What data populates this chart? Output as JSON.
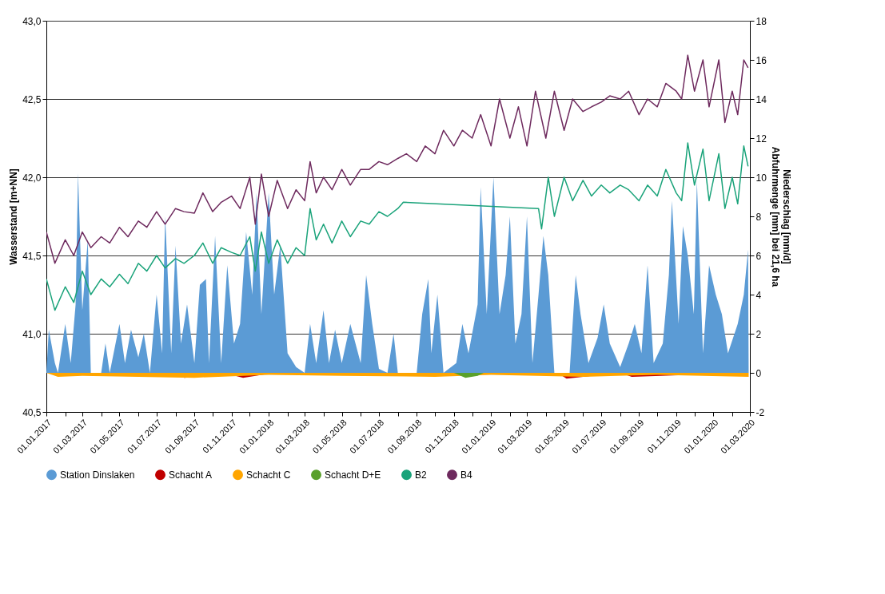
{
  "chart_data": {
    "type": "line",
    "ylabel": "Wasserstand  [m+NN]",
    "y2label": "Niederschlag [mm/d]\nAbfuhrmenge [mm] bei 21,6 ha",
    "xlim": [
      "2017-01-01",
      "2020-03-01"
    ],
    "xticks": [
      {
        "value": "2017-01-01",
        "label": "01.01.2017"
      },
      {
        "value": "2017-02-01",
        "label": null
      },
      {
        "value": "2017-03-01",
        "label": "01.03.2017"
      },
      {
        "value": "2017-04-01",
        "label": null
      },
      {
        "value": "2017-05-01",
        "label": "01.05.2017"
      },
      {
        "value": "2017-06-01",
        "label": null
      },
      {
        "value": "2017-07-01",
        "label": "01.07.2017"
      },
      {
        "value": "2017-08-01",
        "label": null
      },
      {
        "value": "2017-09-01",
        "label": "01.09.2017"
      },
      {
        "value": "2017-10-01",
        "label": null
      },
      {
        "value": "2017-11-01",
        "label": "01.11.2017"
      },
      {
        "value": "2017-12-01",
        "label": null
      },
      {
        "value": "2018-01-01",
        "label": "01.01.2018"
      },
      {
        "value": "2018-02-01",
        "label": null
      },
      {
        "value": "2018-03-01",
        "label": "01.03.2018"
      },
      {
        "value": "2018-04-01",
        "label": null
      },
      {
        "value": "2018-05-01",
        "label": "01.05.2018"
      },
      {
        "value": "2018-06-01",
        "label": null
      },
      {
        "value": "2018-07-01",
        "label": "01.07.2018"
      },
      {
        "value": "2018-08-01",
        "label": null
      },
      {
        "value": "2018-09-01",
        "label": "01.09.2018"
      },
      {
        "value": "2018-10-01",
        "label": null
      },
      {
        "value": "2018-11-01",
        "label": "01.11.2018"
      },
      {
        "value": "2018-12-01",
        "label": null
      },
      {
        "value": "2019-01-01",
        "label": "01.01.2019"
      },
      {
        "value": "2019-02-01",
        "label": null
      },
      {
        "value": "2019-03-01",
        "label": "01.03.2019"
      },
      {
        "value": "2019-04-01",
        "label": null
      },
      {
        "value": "2019-05-01",
        "label": "01.05.2019"
      },
      {
        "value": "2019-06-01",
        "label": null
      },
      {
        "value": "2019-07-01",
        "label": "01.07.2019"
      },
      {
        "value": "2019-08-01",
        "label": null
      },
      {
        "value": "2019-09-01",
        "label": "01.09.2019"
      },
      {
        "value": "2019-10-01",
        "label": null
      },
      {
        "value": "2019-11-01",
        "label": "01.11.2019"
      },
      {
        "value": "2019-12-01",
        "label": null
      },
      {
        "value": "2020-01-01",
        "label": "01.01.2020"
      },
      {
        "value": "2020-02-01",
        "label": null
      },
      {
        "value": "2020-03-01",
        "label": "01.03.2020"
      }
    ],
    "ylim": [
      40.5,
      43.0
    ],
    "yticks": [
      {
        "value": 40.5,
        "label": "40,5"
      },
      {
        "value": 41.0,
        "label": "41,0"
      },
      {
        "value": 41.5,
        "label": "41,5"
      },
      {
        "value": 42.0,
        "label": "42,0"
      },
      {
        "value": 42.5,
        "label": "42,5"
      },
      {
        "value": 43.0,
        "label": "43,0"
      }
    ],
    "y2lim": [
      -2,
      18
    ],
    "y2ticks": [
      -2,
      0,
      2,
      4,
      6,
      8,
      10,
      12,
      14,
      16,
      18
    ],
    "grid": "y",
    "legend": "bottom",
    "series": [
      {
        "name": "Station Dinslaken",
        "color": "#5b9bd5",
        "type": "area",
        "axis": "y2",
        "x": [
          "2017-01-01",
          "2017-01-05",
          "2017-01-15",
          "2017-01-20",
          "2017-02-01",
          "2017-02-10",
          "2017-02-18",
          "2017-02-22",
          "2017-03-01",
          "2017-03-10",
          "2017-03-15",
          "2017-04-01",
          "2017-04-08",
          "2017-04-15",
          "2017-05-01",
          "2017-05-10",
          "2017-05-20",
          "2017-06-01",
          "2017-06-10",
          "2017-06-20",
          "2017-07-01",
          "2017-07-10",
          "2017-07-15",
          "2017-07-25",
          "2017-08-01",
          "2017-08-10",
          "2017-08-20",
          "2017-09-01",
          "2017-09-10",
          "2017-09-20",
          "2017-09-25",
          "2017-10-05",
          "2017-10-15",
          "2017-10-25",
          "2017-11-05",
          "2017-11-15",
          "2017-11-25",
          "2017-12-05",
          "2017-12-12",
          "2017-12-20",
          "2018-01-01",
          "2018-01-10",
          "2018-01-20",
          "2018-02-01",
          "2018-02-15",
          "2018-03-01",
          "2018-03-10",
          "2018-03-20",
          "2018-04-01",
          "2018-04-10",
          "2018-04-20",
          "2018-05-01",
          "2018-05-15",
          "2018-06-01",
          "2018-06-10",
          "2018-06-20",
          "2018-07-01",
          "2018-07-15",
          "2018-07-25",
          "2018-08-01",
          "2018-09-01",
          "2018-09-10",
          "2018-09-20",
          "2018-09-25",
          "2018-10-05",
          "2018-10-15",
          "2018-11-05",
          "2018-11-15",
          "2018-11-25",
          "2018-12-10",
          "2018-12-15",
          "2018-12-25",
          "2019-01-05",
          "2019-01-15",
          "2019-01-25",
          "2019-02-01",
          "2019-02-10",
          "2019-02-20",
          "2019-03-01",
          "2019-03-10",
          "2019-03-20",
          "2019-03-28",
          "2019-04-05",
          "2019-04-15",
          "2019-05-10",
          "2019-05-20",
          "2019-05-28",
          "2019-06-10",
          "2019-06-25",
          "2019-07-05",
          "2019-07-15",
          "2019-08-01",
          "2019-08-15",
          "2019-08-25",
          "2019-09-05",
          "2019-09-15",
          "2019-09-25",
          "2019-10-10",
          "2019-10-20",
          "2019-10-25",
          "2019-11-05",
          "2019-11-12",
          "2019-11-20",
          "2019-11-30",
          "2019-12-05",
          "2019-12-15",
          "2019-12-25",
          "2020-01-05",
          "2020-01-15",
          "2020-01-25",
          "2020-02-10",
          "2020-02-20",
          "2020-02-27",
          "2020-02-28"
        ],
        "values": [
          0,
          2.2,
          0.5,
          0,
          2.5,
          0.5,
          3.5,
          10.2,
          3.2,
          6.8,
          0,
          0,
          1.5,
          0,
          2.5,
          0.5,
          2.2,
          0.8,
          2.0,
          0,
          4.0,
          1.0,
          8.0,
          1.0,
          6.5,
          1.5,
          3.5,
          0.5,
          4.5,
          4.8,
          0.5,
          7.0,
          0.5,
          5.5,
          1.5,
          2.5,
          7.2,
          4.0,
          9.2,
          3.0,
          9.2,
          4.0,
          6.5,
          1.0,
          0.3,
          0,
          2.5,
          0.5,
          3.2,
          0.5,
          2.2,
          0.5,
          2.5,
          0.5,
          5.0,
          2.5,
          0.2,
          0,
          2.0,
          0,
          0,
          3.0,
          4.8,
          1.0,
          4.0,
          0,
          0.5,
          2.5,
          1.0,
          3.5,
          9.5,
          3.0,
          10.0,
          3.0,
          5.0,
          8.0,
          1.5,
          3.0,
          8.0,
          0.5,
          4.0,
          7.0,
          5.0,
          0,
          0,
          5.0,
          3.0,
          0.5,
          1.8,
          3.5,
          1.5,
          0.3,
          1.5,
          2.5,
          1.0,
          5.5,
          0.5,
          1.5,
          5.0,
          8.8,
          2.5,
          7.5,
          6.0,
          3.0,
          9.8,
          1.0,
          5.5,
          4.0,
          3.0,
          1.0,
          2.5,
          4.0,
          6.3,
          0
        ]
      },
      {
        "name": "Schacht A",
        "color": "#c00000",
        "type": "area",
        "axis": "y2",
        "x": [
          "2017-01-01",
          "2017-08-01",
          "2017-08-15",
          "2017-11-01",
          "2017-11-20",
          "2018-01-10",
          "2019-04-20",
          "2019-05-05",
          "2019-08-01",
          "2019-08-20",
          "2020-02-28"
        ],
        "values": [
          0,
          0,
          -0.25,
          -0.1,
          -0.25,
          0,
          0,
          -0.3,
          0,
          -0.2,
          0
        ]
      },
      {
        "name": "Schacht C",
        "color": "#ffa500",
        "type": "area",
        "axis": "y2",
        "x": [
          "2017-01-01",
          "2017-01-20",
          "2017-03-01",
          "2017-06-01",
          "2017-09-01",
          "2018-01-01",
          "2018-05-01",
          "2018-10-01",
          "2019-01-01",
          "2019-06-01",
          "2019-10-01",
          "2020-02-28"
        ],
        "values": [
          0,
          -0.2,
          -0.15,
          -0.2,
          -0.25,
          -0.1,
          -0.15,
          -0.2,
          -0.1,
          -0.2,
          -0.1,
          -0.2
        ]
      },
      {
        "name": "Schacht D+E",
        "color": "#5aa02c",
        "type": "area",
        "axis": "y2",
        "x": [
          "2018-11-01",
          "2018-11-20",
          "2018-12-10",
          "2018-12-20",
          "2020-02-28"
        ],
        "values": [
          0,
          -0.25,
          -0.15,
          0,
          0
        ]
      },
      {
        "name": "B2",
        "color": "#1aa37a",
        "x": [
          "2017-01-01",
          "2017-01-15",
          "2017-02-01",
          "2017-02-15",
          "2017-03-01",
          "2017-03-15",
          "2017-04-01",
          "2017-04-15",
          "2017-05-01",
          "2017-05-15",
          "2017-06-01",
          "2017-06-15",
          "2017-07-01",
          "2017-07-15",
          "2017-08-01",
          "2017-08-15",
          "2017-09-01",
          "2017-09-15",
          "2017-10-01",
          "2017-10-15",
          "2017-11-01",
          "2017-11-15",
          "2017-12-01",
          "2017-12-10",
          "2017-12-20",
          "2018-01-01",
          "2018-01-15",
          "2018-02-01",
          "2018-02-15",
          "2018-03-01",
          "2018-03-10",
          "2018-03-20",
          "2018-04-01",
          "2018-04-15",
          "2018-05-01",
          "2018-05-15",
          "2018-06-01",
          "2018-06-15",
          "2018-07-01",
          "2018-07-15",
          "2018-08-01",
          "2018-08-10",
          "2019-03-20",
          "2019-03-25",
          "2019-04-05",
          "2019-04-15",
          "2019-05-01",
          "2019-05-15",
          "2019-06-01",
          "2019-06-15",
          "2019-07-01",
          "2019-07-15",
          "2019-08-01",
          "2019-08-15",
          "2019-09-01",
          "2019-09-15",
          "2019-10-01",
          "2019-10-15",
          "2019-11-01",
          "2019-11-10",
          "2019-11-20",
          "2019-12-01",
          "2019-12-15",
          "2019-12-25",
          "2020-01-10",
          "2020-01-20",
          "2020-02-01",
          "2020-02-10",
          "2020-02-20",
          "2020-02-27"
        ],
        "values": [
          41.35,
          41.15,
          41.3,
          41.2,
          41.4,
          41.25,
          41.35,
          41.3,
          41.38,
          41.32,
          41.45,
          41.4,
          41.5,
          41.42,
          41.48,
          41.45,
          41.5,
          41.58,
          41.45,
          41.55,
          41.52,
          41.5,
          41.62,
          41.4,
          41.65,
          41.45,
          41.6,
          41.45,
          41.55,
          41.5,
          41.8,
          41.6,
          41.7,
          41.58,
          41.72,
          41.62,
          41.72,
          41.7,
          41.78,
          41.75,
          41.8,
          41.84,
          41.8,
          41.67,
          42.0,
          41.75,
          42.0,
          41.85,
          41.98,
          41.88,
          41.95,
          41.9,
          41.95,
          41.92,
          41.85,
          41.95,
          41.88,
          42.05,
          41.9,
          41.85,
          42.22,
          41.95,
          42.18,
          41.85,
          42.15,
          41.8,
          42.0,
          41.83,
          42.2,
          42.07
        ]
      },
      {
        "name": "B4",
        "color": "#6e2a5e",
        "x": [
          "2017-01-01",
          "2017-01-15",
          "2017-02-01",
          "2017-02-15",
          "2017-03-01",
          "2017-03-15",
          "2017-04-01",
          "2017-04-15",
          "2017-05-01",
          "2017-05-15",
          "2017-06-01",
          "2017-06-15",
          "2017-07-01",
          "2017-07-15",
          "2017-08-01",
          "2017-08-15",
          "2017-09-01",
          "2017-09-15",
          "2017-10-01",
          "2017-10-15",
          "2017-11-01",
          "2017-11-15",
          "2017-12-01",
          "2017-12-10",
          "2017-12-20",
          "2018-01-01",
          "2018-01-15",
          "2018-02-01",
          "2018-02-15",
          "2018-03-01",
          "2018-03-10",
          "2018-03-20",
          "2018-04-01",
          "2018-04-15",
          "2018-05-01",
          "2018-05-15",
          "2018-06-01",
          "2018-06-15",
          "2018-07-01",
          "2018-07-15",
          "2018-08-01",
          "2018-08-15",
          "2018-09-01",
          "2018-09-15",
          "2018-10-01",
          "2018-10-15",
          "2018-11-01",
          "2018-11-15",
          "2018-12-01",
          "2018-12-15",
          "2019-01-01",
          "2019-01-15",
          "2019-02-01",
          "2019-02-15",
          "2019-03-01",
          "2019-03-15",
          "2019-04-01",
          "2019-04-15",
          "2019-05-01",
          "2019-05-15",
          "2019-06-01",
          "2019-06-15",
          "2019-07-01",
          "2019-07-15",
          "2019-08-01",
          "2019-08-15",
          "2019-09-01",
          "2019-09-15",
          "2019-10-01",
          "2019-10-15",
          "2019-11-01",
          "2019-11-10",
          "2019-11-20",
          "2019-12-01",
          "2019-12-15",
          "2019-12-25",
          "2020-01-10",
          "2020-01-20",
          "2020-02-01",
          "2020-02-10",
          "2020-02-20",
          "2020-02-27"
        ],
        "values": [
          41.65,
          41.45,
          41.6,
          41.5,
          41.65,
          41.55,
          41.62,
          41.58,
          41.68,
          41.62,
          41.72,
          41.68,
          41.78,
          41.7,
          41.8,
          41.78,
          41.77,
          41.9,
          41.78,
          41.84,
          41.88,
          41.8,
          42.0,
          41.7,
          42.02,
          41.75,
          41.98,
          41.8,
          41.92,
          41.85,
          42.1,
          41.9,
          42.0,
          41.92,
          42.05,
          41.95,
          42.05,
          42.05,
          42.1,
          42.08,
          42.12,
          42.15,
          42.1,
          42.2,
          42.15,
          42.3,
          42.2,
          42.3,
          42.25,
          42.4,
          42.2,
          42.5,
          42.25,
          42.45,
          42.2,
          42.55,
          42.25,
          42.55,
          42.3,
          42.5,
          42.42,
          42.45,
          42.48,
          42.52,
          42.5,
          42.55,
          42.4,
          42.5,
          42.45,
          42.6,
          42.55,
          42.5,
          42.78,
          42.55,
          42.75,
          42.45,
          42.75,
          42.35,
          42.55,
          42.4,
          42.75,
          42.7
        ]
      }
    ]
  }
}
